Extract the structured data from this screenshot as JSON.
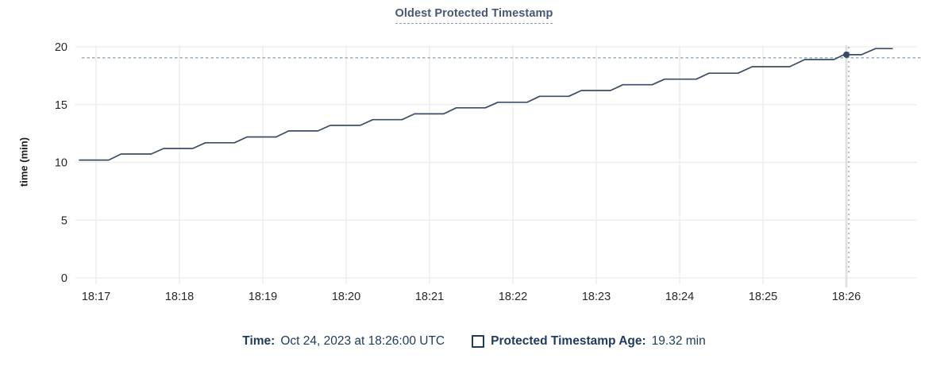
{
  "legend": {
    "time_label": "Time:",
    "time_value": "Oct 24, 2023 at 18:26:00 UTC",
    "series_label": "Protected Timestamp Age:",
    "series_value": "19.32 min"
  },
  "chart_data": {
    "type": "line",
    "title": "Oldest Protected Timestamp",
    "ylabel": "time (min)",
    "ylim": [
      0,
      20
    ],
    "y_ticks": [
      0,
      5,
      10,
      15,
      20
    ],
    "x_tick_labels": [
      "18:17",
      "18:18",
      "18:19",
      "18:20",
      "18:21",
      "18:22",
      "18:23",
      "18:24",
      "18:25",
      "18:26"
    ],
    "grid": true,
    "legend_position": "bottom",
    "series": [
      {
        "name": "Protected Timestamp Age",
        "unit": "min",
        "points": [
          [
            -0.2,
            10.2
          ],
          [
            0.15,
            10.2
          ],
          [
            0.3,
            10.72
          ],
          [
            0.66,
            10.72
          ],
          [
            0.81,
            11.2
          ],
          [
            1.16,
            11.2
          ],
          [
            1.31,
            11.7
          ],
          [
            1.66,
            11.7
          ],
          [
            1.81,
            12.2
          ],
          [
            2.16,
            12.2
          ],
          [
            2.31,
            12.72
          ],
          [
            2.66,
            12.72
          ],
          [
            2.81,
            13.2
          ],
          [
            3.17,
            13.2
          ],
          [
            3.32,
            13.7
          ],
          [
            3.67,
            13.7
          ],
          [
            3.82,
            14.2
          ],
          [
            4.17,
            14.2
          ],
          [
            4.32,
            14.72
          ],
          [
            4.67,
            14.72
          ],
          [
            4.82,
            15.2
          ],
          [
            5.17,
            15.2
          ],
          [
            5.32,
            15.72
          ],
          [
            5.67,
            15.72
          ],
          [
            5.82,
            16.22
          ],
          [
            6.17,
            16.22
          ],
          [
            6.32,
            16.72
          ],
          [
            6.67,
            16.72
          ],
          [
            6.82,
            17.2
          ],
          [
            7.2,
            17.2
          ],
          [
            7.35,
            17.72
          ],
          [
            7.7,
            17.72
          ],
          [
            7.87,
            18.28
          ],
          [
            8.32,
            18.28
          ],
          [
            8.5,
            18.9
          ],
          [
            8.85,
            18.9
          ],
          [
            8.97,
            19.32
          ],
          [
            9.18,
            19.32
          ],
          [
            9.35,
            19.85
          ],
          [
            9.55,
            19.85
          ]
        ]
      }
    ],
    "crosshair": {
      "x_tick": "18:26",
      "x_minutes_from_1817": 9.0,
      "hover_value_min": 19.32,
      "hline_value_min": 19.05
    }
  },
  "colors": {
    "line": "#3b4c66",
    "dot": "#394a63",
    "title": "#475872",
    "legend_text": "#1d3a5f",
    "axis_text": "#26282a",
    "grid": "#ececec",
    "crosshair_band": "#e2e2e2",
    "dashed": "#8fa7b8",
    "background": "#ffffff"
  }
}
